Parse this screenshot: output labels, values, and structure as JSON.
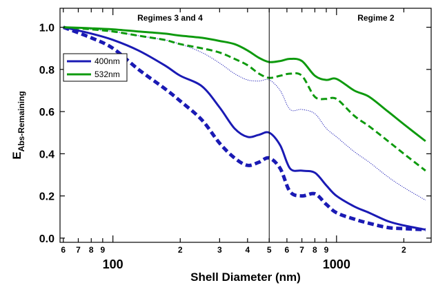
{
  "chart_data": {
    "type": "line",
    "title": "",
    "xlabel": "Shell Diameter (nm)",
    "ylabel": {
      "main": "E",
      "subscript": "Abs-Remaining"
    },
    "x_scale": "log",
    "xlim": [
      58,
      2650
    ],
    "ylim": [
      -0.02,
      1.09
    ],
    "x_ticks_major": [
      {
        "value": 100,
        "label": "100"
      },
      {
        "value": 1000,
        "label": "1000"
      }
    ],
    "x_ticks_minor": [
      {
        "value": 60,
        "label": "6"
      },
      {
        "value": 70,
        "label": "7"
      },
      {
        "value": 80,
        "label": "8"
      },
      {
        "value": 90,
        "label": "9"
      },
      {
        "value": 200,
        "label": "2"
      },
      {
        "value": 300,
        "label": "3"
      },
      {
        "value": 400,
        "label": "4"
      },
      {
        "value": 500,
        "label": "5"
      },
      {
        "value": 600,
        "label": "6"
      },
      {
        "value": 700,
        "label": "7"
      },
      {
        "value": 800,
        "label": "8"
      },
      {
        "value": 900,
        "label": "9"
      },
      {
        "value": 2000,
        "label": "2"
      }
    ],
    "y_ticks": [
      {
        "value": 0.0,
        "label": "0.0"
      },
      {
        "value": 0.2,
        "label": "0.2"
      },
      {
        "value": 0.4,
        "label": "0.4"
      },
      {
        "value": 0.6,
        "label": "0.6"
      },
      {
        "value": 0.8,
        "label": "0.8"
      },
      {
        "value": 1.0,
        "label": "1.0"
      }
    ],
    "grid": false,
    "vertical_line_x": 500,
    "annotations": [
      {
        "text": "Regimes 3 and 4",
        "x": 180,
        "y": 1.045
      },
      {
        "text": "Regime 2",
        "x": 1500,
        "y": 1.045
      }
    ],
    "legend": {
      "placement": "upper-left",
      "entries": [
        {
          "label": "400nm",
          "color": "#1a1ab4"
        },
        {
          "label": "532nm",
          "color": "#0e9a0e"
        }
      ]
    },
    "series": [
      {
        "legend": "400nm",
        "color": "#1a1ab4",
        "style": "solid",
        "width": 3,
        "x": [
          60,
          80,
          100,
          130,
          170,
          200,
          250,
          300,
          350,
          400,
          450,
          500,
          560,
          620,
          700,
          800,
          900,
          1000,
          1200,
          1400,
          1700,
          2000,
          2500
        ],
        "y": [
          1.0,
          0.97,
          0.94,
          0.89,
          0.82,
          0.77,
          0.72,
          0.62,
          0.52,
          0.48,
          0.49,
          0.5,
          0.44,
          0.33,
          0.32,
          0.31,
          0.25,
          0.2,
          0.15,
          0.12,
          0.08,
          0.06,
          0.04
        ]
      },
      {
        "legend": "",
        "color": "#1a1ab4",
        "style": "dashed",
        "width": 5,
        "x": [
          60,
          80,
          100,
          130,
          170,
          200,
          250,
          300,
          350,
          400,
          450,
          500,
          560,
          620,
          700,
          800,
          900,
          1000,
          1200,
          1400,
          1700,
          2000,
          2500
        ],
        "y": [
          1.0,
          0.95,
          0.9,
          0.8,
          0.71,
          0.65,
          0.56,
          0.45,
          0.38,
          0.345,
          0.36,
          0.38,
          0.33,
          0.22,
          0.2,
          0.21,
          0.16,
          0.12,
          0.09,
          0.07,
          0.05,
          0.045,
          0.04
        ]
      },
      {
        "legend": "",
        "color": "#1a1ab4",
        "style": "dotted",
        "width": 1,
        "x": [
          60,
          80,
          100,
          130,
          170,
          200,
          250,
          300,
          350,
          400,
          450,
          500,
          560,
          620,
          700,
          800,
          900,
          1000,
          1200,
          1400,
          1700,
          2000,
          2500
        ],
        "y": [
          1.0,
          0.99,
          0.98,
          0.96,
          0.94,
          0.92,
          0.88,
          0.83,
          0.78,
          0.75,
          0.745,
          0.75,
          0.7,
          0.61,
          0.61,
          0.59,
          0.52,
          0.48,
          0.41,
          0.36,
          0.29,
          0.24,
          0.18
        ]
      },
      {
        "legend": "532nm",
        "color": "#0e9a0e",
        "style": "solid",
        "width": 3,
        "x": [
          60,
          80,
          100,
          130,
          170,
          200,
          250,
          300,
          350,
          400,
          450,
          500,
          560,
          620,
          700,
          800,
          900,
          1000,
          1200,
          1400,
          1700,
          2000,
          2500
        ],
        "y": [
          1.0,
          0.995,
          0.99,
          0.98,
          0.97,
          0.96,
          0.95,
          0.935,
          0.92,
          0.89,
          0.855,
          0.835,
          0.84,
          0.85,
          0.84,
          0.77,
          0.75,
          0.755,
          0.7,
          0.67,
          0.6,
          0.54,
          0.46
        ]
      },
      {
        "legend": "",
        "color": "#0e9a0e",
        "style": "dashed",
        "width": 3,
        "x": [
          60,
          80,
          100,
          130,
          170,
          200,
          250,
          300,
          350,
          400,
          450,
          500,
          560,
          620,
          700,
          800,
          900,
          1000,
          1200,
          1400,
          1700,
          2000,
          2500
        ],
        "y": [
          1.0,
          0.99,
          0.98,
          0.96,
          0.94,
          0.92,
          0.9,
          0.88,
          0.85,
          0.82,
          0.78,
          0.76,
          0.77,
          0.78,
          0.77,
          0.67,
          0.66,
          0.66,
          0.58,
          0.53,
          0.46,
          0.4,
          0.32
        ]
      }
    ]
  }
}
